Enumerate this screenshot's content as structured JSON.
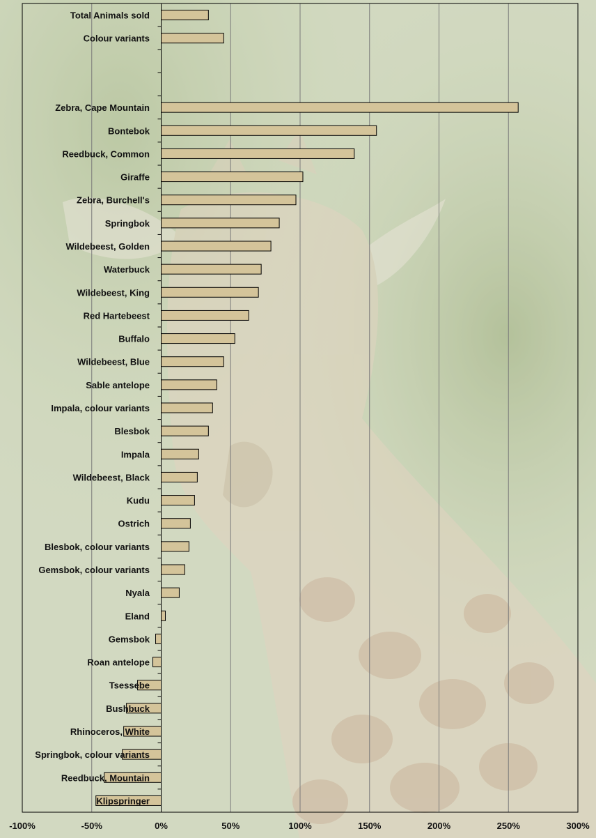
{
  "chart_data": {
    "type": "bar",
    "orientation": "horizontal",
    "title": "",
    "xlabel": "",
    "ylabel": "",
    "xlim": [
      -100,
      300
    ],
    "x_ticks": [
      "-100%",
      "-50%",
      "0%",
      "50%",
      "100%",
      "150%",
      "200%",
      "250%",
      "300%"
    ],
    "grid": "vertical gridlines",
    "bar_color": "#D4C49A",
    "categories": [
      "Total Animals sold",
      "Colour variants",
      "",
      "",
      "Zebra, Cape Mountain",
      "Bontebok",
      "Reedbuck, Common",
      "Giraffe",
      "Zebra, Burchell's",
      "Springbok",
      "Wildebeest, Golden",
      "Waterbuck",
      "Wildebeest, King",
      "Red Hartebeest",
      "Buffalo",
      "Wildebeest, Blue",
      "Sable antelope",
      "Impala, colour variants",
      "Blesbok",
      "Impala",
      "Wildebeest, Black",
      "Kudu",
      "Ostrich",
      "Blesbok, colour variants",
      "Gemsbok, colour variants",
      "Nyala",
      "Eland",
      "Gemsbok",
      "Roan antelope",
      "Tsessebe",
      "Bushbuck",
      "Rhinoceros, White",
      "Springbok, colour variants",
      "Reedbuck, Mountain",
      "Klipspringer"
    ],
    "values": [
      34,
      45,
      null,
      null,
      257,
      155,
      139,
      102,
      97,
      85,
      79,
      72,
      70,
      63,
      53,
      45,
      40,
      37,
      34,
      27,
      26,
      24,
      21,
      20,
      17,
      13,
      3,
      -4,
      -6,
      -17,
      -25,
      -27,
      -28,
      -41,
      -47
    ]
  }
}
